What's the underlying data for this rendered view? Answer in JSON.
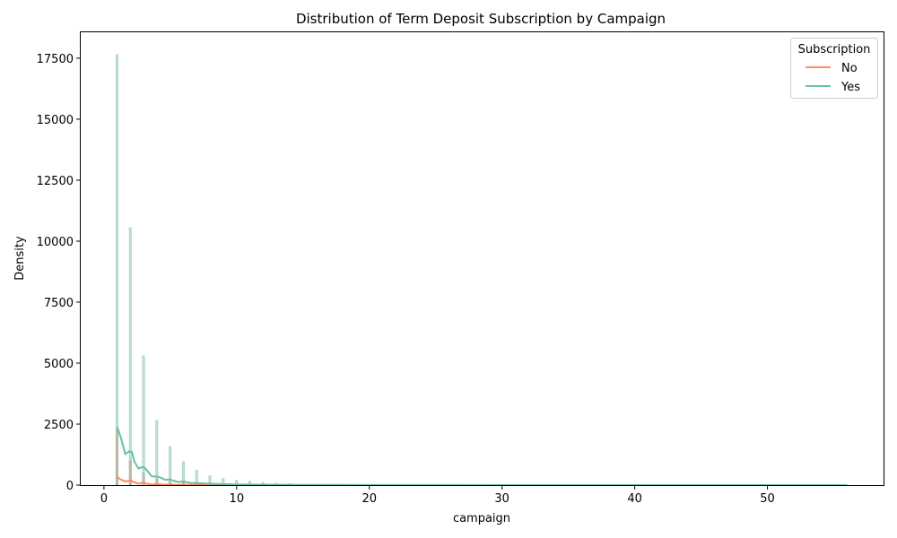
{
  "chart_data": {
    "type": "area",
    "title": "Distribution of Term Deposit Subscription by Campaign",
    "xlabel": "campaign",
    "ylabel": "Density",
    "xlim": [
      -1.75,
      58.75
    ],
    "ylim": [
      0,
      18600
    ],
    "xticks": [
      0,
      10,
      20,
      30,
      40,
      50
    ],
    "yticks": [
      0,
      2500,
      5000,
      7500,
      10000,
      12500,
      15000,
      17500
    ],
    "legend": {
      "title": "Subscription",
      "placement": "top-right"
    },
    "series": [
      {
        "name": "No",
        "color": "#fc8d62",
        "histogram": {
          "x": [
            1,
            2,
            3,
            4,
            5,
            6,
            7,
            8,
            9,
            10,
            11,
            12,
            13,
            14,
            15,
            17
          ],
          "values": [
            2300,
            1000,
            500,
            250,
            140,
            90,
            55,
            40,
            25,
            20,
            15,
            12,
            10,
            8,
            6,
            4
          ]
        },
        "kde": {
          "x": [
            1,
            1.3,
            1.6,
            2,
            2.3,
            2.6,
            3,
            3.3,
            3.6,
            4,
            4.5,
            5,
            5.5,
            6,
            7,
            8,
            10,
            15,
            20,
            30,
            40,
            56
          ],
          "values": [
            330,
            220,
            150,
            190,
            110,
            60,
            95,
            50,
            25,
            45,
            20,
            28,
            12,
            18,
            10,
            6,
            3,
            1,
            0,
            0,
            0,
            0
          ]
        }
      },
      {
        "name": "Yes",
        "color": "#66c2a5",
        "histogram": {
          "x": [
            1,
            2,
            3,
            4,
            5,
            6,
            7,
            8,
            9,
            10,
            11,
            12,
            13,
            14,
            15,
            16,
            17,
            18,
            19,
            20
          ],
          "values": [
            17650,
            10550,
            5300,
            2650,
            1580,
            960,
            610,
            380,
            270,
            200,
            150,
            110,
            80,
            60,
            45,
            35,
            28,
            20,
            15,
            12
          ]
        },
        "kde": {
          "x": [
            1,
            1.3,
            1.6,
            1.9,
            2.1,
            2.3,
            2.6,
            2.9,
            3.1,
            3.3,
            3.6,
            4,
            4.3,
            4.6,
            5,
            5.3,
            5.6,
            6,
            6.5,
            7,
            8,
            9,
            10,
            12,
            15,
            20,
            30,
            40,
            56
          ],
          "values": [
            2380,
            1900,
            1280,
            1380,
            1360,
            960,
            680,
            740,
            700,
            560,
            360,
            350,
            300,
            220,
            230,
            170,
            130,
            150,
            90,
            80,
            55,
            40,
            28,
            18,
            10,
            5,
            2,
            1,
            0
          ]
        }
      }
    ]
  }
}
